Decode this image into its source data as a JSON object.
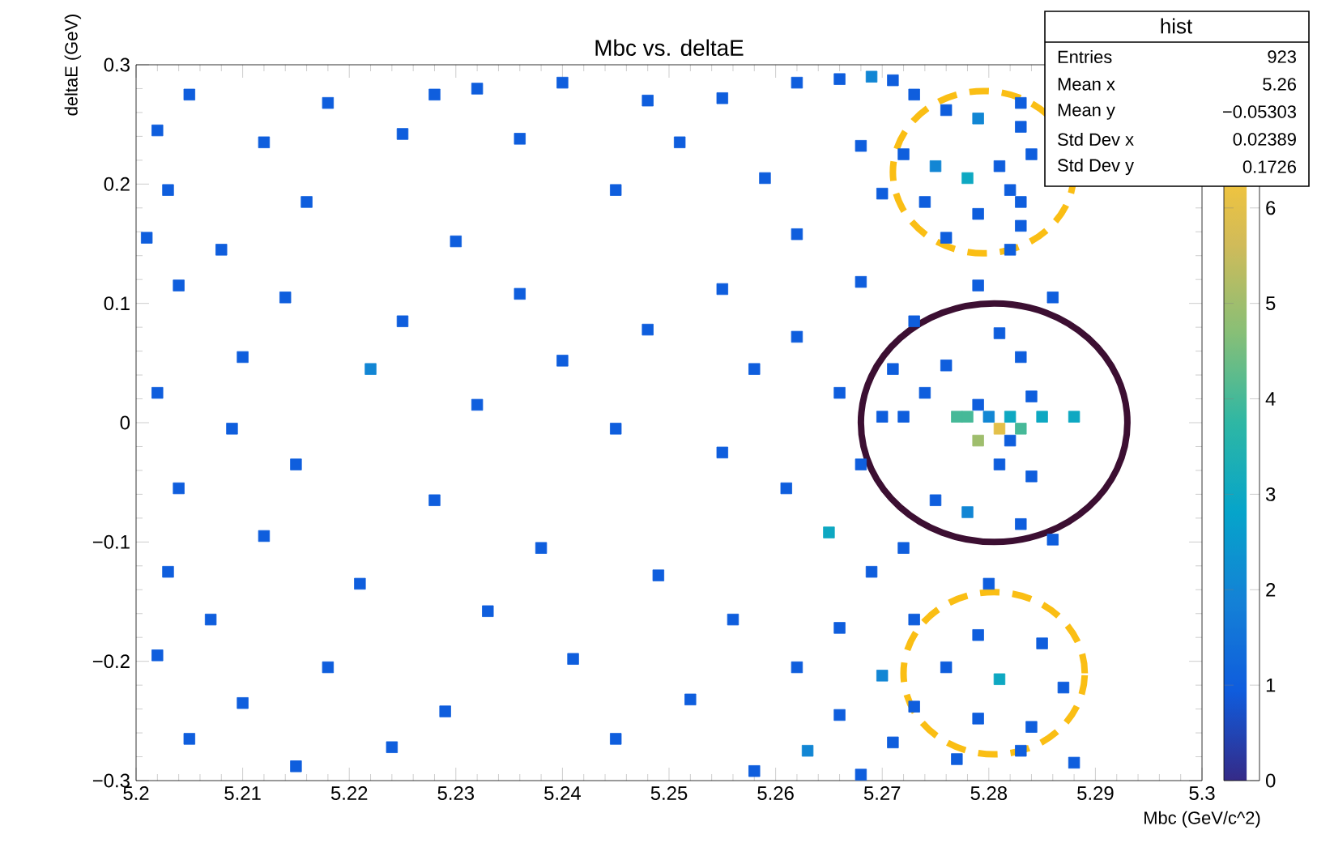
{
  "chart_data": {
    "type": "scatter",
    "title": "Mbc vs. deltaE",
    "xlabel": "Mbc (GeV/c^2)",
    "ylabel": "deltaE (GeV)",
    "marker": "square",
    "grid": false,
    "xlim": [
      5.2,
      5.3
    ],
    "ylim": [
      -0.3,
      0.3
    ],
    "xticks": [
      5.2,
      5.21,
      5.22,
      5.23,
      5.24,
      5.25,
      5.26,
      5.27,
      5.28,
      5.29,
      5.3
    ],
    "yticks": [
      {
        "value": -0.3,
        "label": "−0.3"
      },
      {
        "value": -0.2,
        "label": "−0.2"
      },
      {
        "value": -0.1,
        "label": "−0.1"
      },
      0,
      0.1,
      0.2,
      0.3
    ],
    "clim": [
      0,
      7.5
    ],
    "cticks": [
      0,
      1,
      2,
      3,
      4,
      5,
      6
    ],
    "annotations": [
      "hist",
      "Entries",
      "923",
      "Mean x",
      "5.26",
      "Mean y",
      "−0.05303",
      "Std Dev x",
      "0.02389",
      "Std Dev y",
      "0.1726"
    ],
    "x": [
      5.205,
      5.218,
      5.228,
      5.232,
      5.24,
      5.248,
      5.255,
      5.262,
      5.266,
      5.269,
      5.271,
      5.273,
      5.276,
      5.279,
      5.283,
      5.283,
      5.202,
      5.212,
      5.225,
      5.236,
      5.251,
      5.268,
      5.272,
      5.275,
      5.278,
      5.281,
      5.284,
      5.282,
      5.203,
      5.216,
      5.245,
      5.259,
      5.27,
      5.274,
      5.279,
      5.283,
      5.283,
      5.201,
      5.208,
      5.23,
      5.262,
      5.276,
      5.282,
      5.204,
      5.214,
      5.236,
      5.255,
      5.268,
      5.279,
      5.286,
      5.225,
      5.248,
      5.262,
      5.273,
      5.281,
      5.21,
      5.222,
      5.24,
      5.258,
      5.271,
      5.276,
      5.283,
      5.202,
      5.232,
      5.266,
      5.274,
      5.279,
      5.284,
      5.27,
      5.272,
      5.277,
      5.278,
      5.28,
      5.282,
      5.285,
      5.209,
      5.245,
      5.281,
      5.283,
      5.288,
      5.279,
      5.282,
      5.215,
      5.255,
      5.268,
      5.281,
      5.284,
      5.204,
      5.228,
      5.261,
      5.275,
      5.278,
      5.283,
      5.212,
      5.238,
      5.265,
      5.272,
      5.286,
      5.203,
      5.221,
      5.249,
      5.269,
      5.28,
      5.207,
      5.233,
      5.256,
      5.266,
      5.273,
      5.279,
      5.285,
      5.202,
      5.218,
      5.241,
      5.262,
      5.27,
      5.276,
      5.281,
      5.287,
      5.21,
      5.229,
      5.252,
      5.266,
      5.273,
      5.279,
      5.284,
      5.205,
      5.224,
      5.245,
      5.263,
      5.271,
      5.277,
      5.283,
      5.288,
      5.215,
      5.258,
      5.268
    ],
    "values": [
      0.275,
      0.268,
      0.275,
      0.28,
      0.285,
      0.27,
      0.272,
      0.285,
      0.288,
      0.29,
      0.287,
      0.275,
      0.262,
      0.255,
      0.268,
      0.248,
      0.245,
      0.235,
      0.242,
      0.238,
      0.235,
      0.232,
      0.225,
      0.215,
      0.205,
      0.215,
      0.225,
      0.195,
      0.195,
      0.185,
      0.195,
      0.205,
      0.192,
      0.185,
      0.175,
      0.185,
      0.165,
      0.155,
      0.145,
      0.152,
      0.158,
      0.155,
      0.145,
      0.115,
      0.105,
      0.108,
      0.112,
      0.118,
      0.115,
      0.105,
      0.085,
      0.078,
      0.072,
      0.085,
      0.075,
      0.055,
      0.045,
      0.052,
      0.045,
      0.045,
      0.048,
      0.055,
      0.025,
      0.015,
      0.025,
      0.025,
      0.015,
      0.022,
      0.005,
      0.005,
      0.005,
      0.005,
      0.005,
      0.005,
      0.005,
      -0.005,
      -0.005,
      -0.005,
      -0.005,
      0.005,
      -0.015,
      -0.015,
      -0.035,
      -0.025,
      -0.035,
      -0.035,
      -0.045,
      -0.055,
      -0.065,
      -0.055,
      -0.065,
      -0.075,
      -0.085,
      -0.095,
      -0.105,
      -0.092,
      -0.105,
      -0.098,
      -0.125,
      -0.135,
      -0.128,
      -0.125,
      -0.135,
      -0.165,
      -0.158,
      -0.165,
      -0.172,
      -0.165,
      -0.178,
      -0.185,
      -0.195,
      -0.205,
      -0.198,
      -0.205,
      -0.212,
      -0.205,
      -0.215,
      -0.222,
      -0.235,
      -0.242,
      -0.232,
      -0.245,
      -0.238,
      -0.248,
      -0.255,
      -0.265,
      -0.272,
      -0.265,
      -0.275,
      -0.268,
      -0.282,
      -0.275,
      -0.285,
      -0.288,
      -0.292,
      -0.295
    ],
    "cvalues": [
      1,
      1,
      1,
      1,
      1,
      1,
      1,
      1,
      1,
      2,
      1,
      1,
      1,
      2,
      1,
      1,
      1,
      1,
      1,
      1,
      1,
      1,
      1,
      2,
      3,
      1,
      1,
      1,
      1,
      1,
      1,
      1,
      1,
      1,
      1,
      1,
      1,
      1,
      1,
      1,
      1,
      1,
      1,
      1,
      1,
      1,
      1,
      1,
      1,
      1,
      1,
      1,
      1,
      1,
      1,
      1,
      2,
      1,
      1,
      1,
      1,
      1,
      1,
      1,
      1,
      1,
      1,
      1,
      1,
      1,
      4,
      4,
      2,
      3,
      3,
      1,
      1,
      6,
      4,
      3,
      5,
      1,
      1,
      1,
      1,
      1,
      1,
      1,
      1,
      1,
      1,
      2,
      1,
      1,
      1,
      3,
      1,
      1,
      1,
      1,
      1,
      1,
      1,
      1,
      1,
      1,
      1,
      1,
      1,
      1,
      1,
      1,
      1,
      1,
      2,
      1,
      3,
      1,
      1,
      1,
      1,
      1,
      1,
      1,
      1,
      1,
      1,
      1,
      2,
      1,
      1,
      1,
      1,
      1,
      1,
      1
    ]
  }
}
